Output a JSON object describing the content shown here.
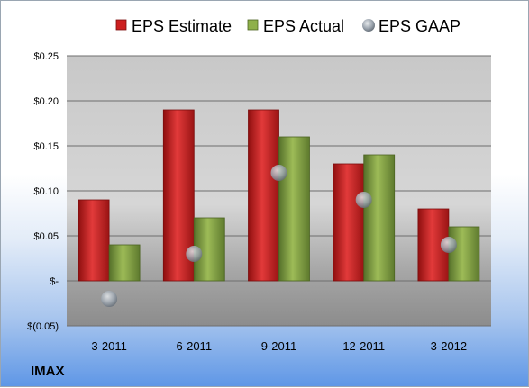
{
  "chart_data": {
    "type": "bar",
    "ticker": "IMAX",
    "categories": [
      "3-2011",
      "6-2011",
      "9-2011",
      "12-2011",
      "3-2012"
    ],
    "series": [
      {
        "name": "EPS Estimate",
        "kind": "bar",
        "color": "#cc1f1f",
        "values": [
          0.09,
          0.19,
          0.19,
          0.13,
          0.08
        ]
      },
      {
        "name": "EPS Actual",
        "kind": "bar",
        "color": "#7f9e3a",
        "values": [
          0.04,
          0.07,
          0.16,
          0.14,
          0.06
        ]
      },
      {
        "name": "EPS GAAP",
        "kind": "marker",
        "color": "#9aa3ad",
        "values": [
          -0.02,
          0.03,
          0.12,
          0.09,
          0.04
        ]
      }
    ],
    "ylim": [
      -0.05,
      0.25
    ],
    "yticks": [
      0.25,
      0.2,
      0.15,
      0.1,
      0.05,
      0,
      -0.05
    ],
    "ytick_labels": [
      "$0.25",
      "$0.20",
      "$0.15",
      "$0.10",
      "$0.05",
      "$-",
      "$(0.05)"
    ],
    "legend_position": "top",
    "grid": true
  }
}
